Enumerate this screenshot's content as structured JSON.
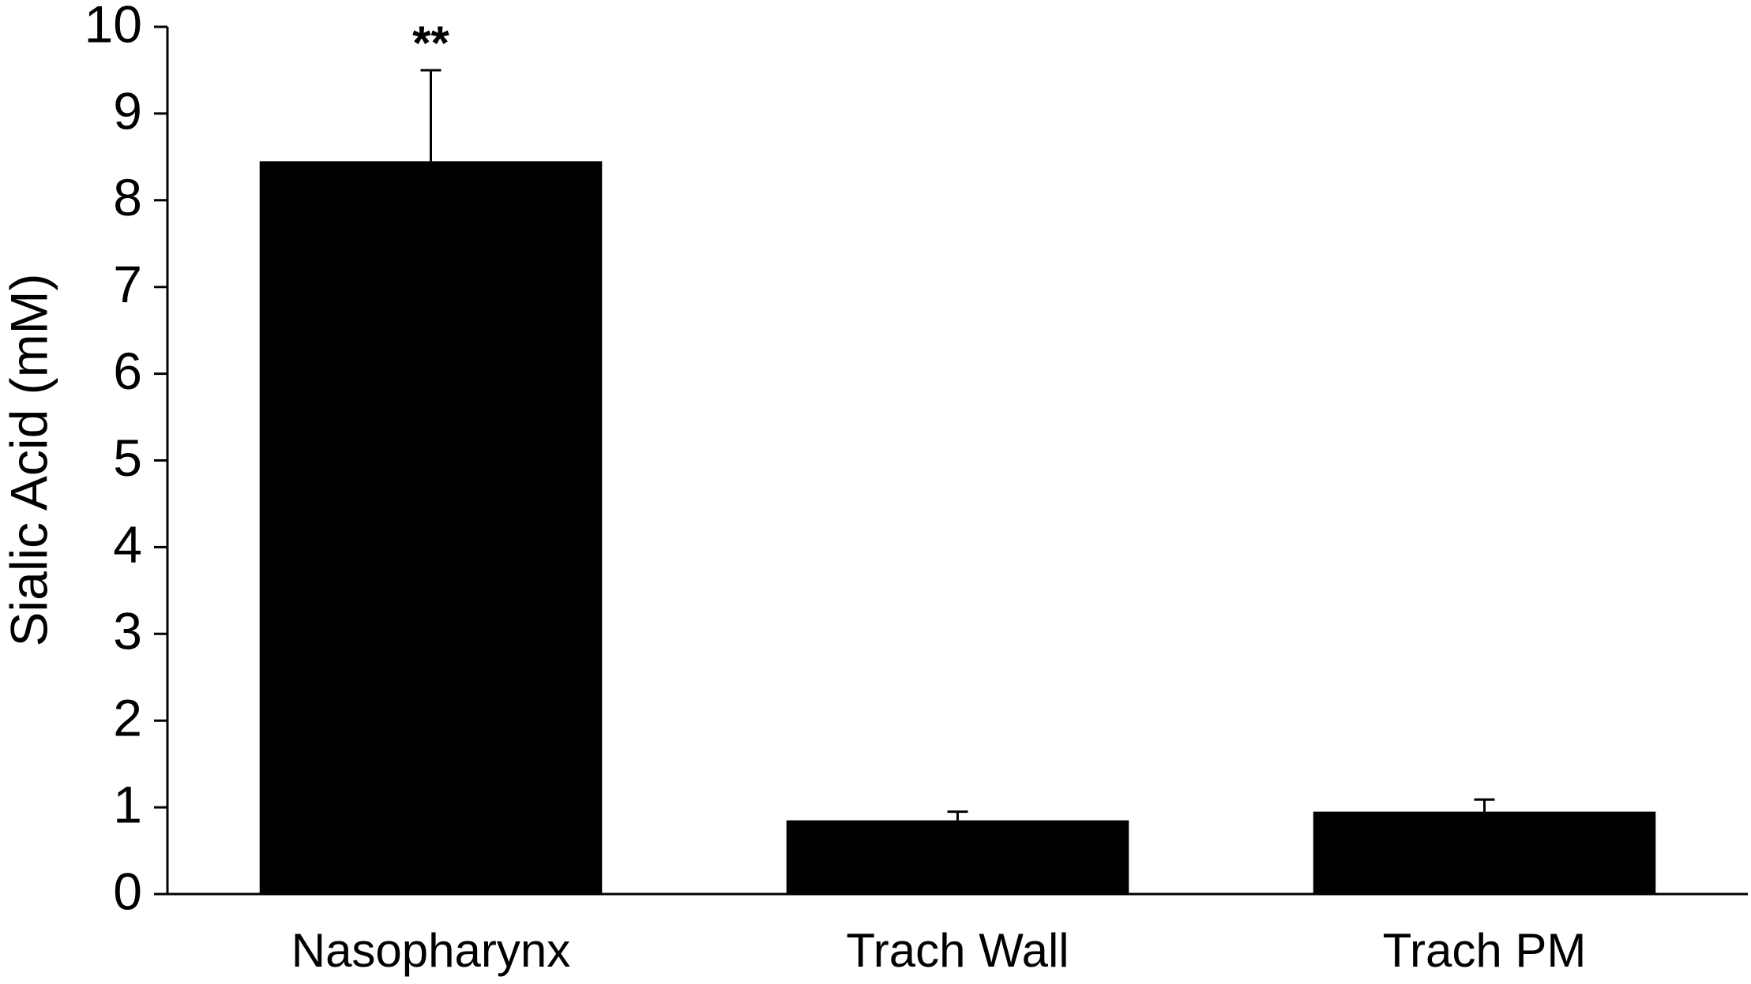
{
  "chart_data": {
    "type": "bar",
    "y_label": "Sialic Acid (mM)",
    "categories": [
      "Nasopharynx",
      "Trach Wall",
      "Trach PM"
    ],
    "values": [
      8.45,
      0.85,
      0.95
    ],
    "errors": [
      1.05,
      0.1,
      0.14
    ],
    "color": "#000000",
    "ylim": [
      0,
      10
    ],
    "yticks": [
      0,
      1,
      2,
      3,
      4,
      5,
      6,
      7,
      8,
      9,
      10
    ],
    "grid": false,
    "annotations": [
      {
        "category": "Nasopharynx",
        "text": "**"
      }
    ]
  }
}
